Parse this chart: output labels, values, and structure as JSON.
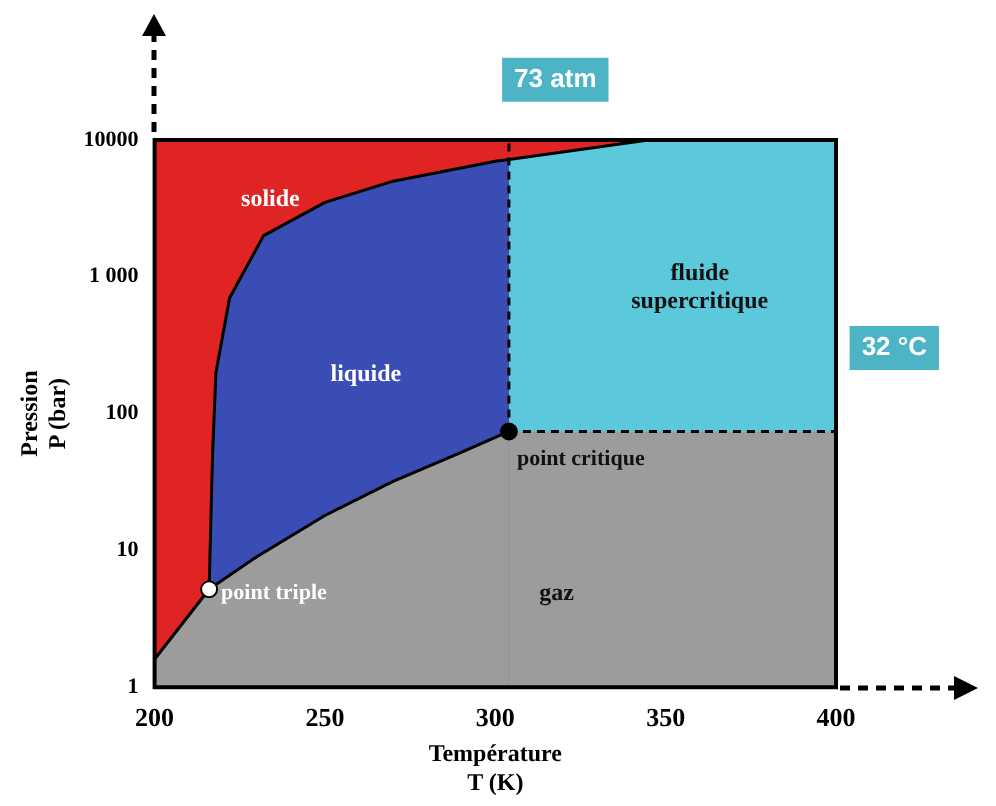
{
  "chart_data": {
    "type": "area",
    "xlabel": "Température\nT (K)",
    "ylabel": "Pression\nP (bar)",
    "xlim": [
      200,
      400
    ],
    "xticks": [
      200,
      250,
      300,
      350,
      400
    ],
    "ylim": [
      1,
      10000
    ],
    "yticks": [
      1,
      10,
      100,
      {
        "value": 1000,
        "label": "1 000"
      },
      10000
    ],
    "log": "y",
    "grid": false,
    "legend": false,
    "series": [
      {
        "type": "area",
        "color": "#e02424",
        "x": [
          200,
          345
        ],
        "values": [
          10000,
          10000
        ]
      },
      {
        "type": "area",
        "color": "#3a4db4",
        "line_style": "solid",
        "x": [
          216,
          217,
          218,
          222,
          232,
          250,
          270,
          300,
          304
        ],
        "values": [
          5.2,
          50,
          200,
          700,
          2000,
          3500,
          5000,
          7000,
          7200
        ]
      },
      {
        "type": "area",
        "color": "#5cc8dc",
        "line_style": "solid",
        "x": [
          304,
          345,
          400
        ],
        "values": [
          7200,
          10000,
          10000
        ]
      },
      {
        "type": "area",
        "color": "#9c9c9c",
        "line_style": "solid",
        "x": [
          200,
          216,
          230,
          250,
          270,
          290,
          304
        ],
        "values": [
          1.6,
          5.2,
          9,
          18,
          32,
          52,
          74
        ]
      },
      {
        "type": "area",
        "color": "#9c9c9c",
        "line_style": "dashed",
        "x": [
          304,
          400
        ],
        "values": [
          74,
          74
        ]
      },
      {
        "type": "line",
        "color": "#000000",
        "line_style": "dashed",
        "x": [
          304,
          304
        ],
        "values": [
          74,
          10000
        ]
      },
      {
        "type": "scatter",
        "marker": "circle",
        "color": "#ffffff",
        "x": [
          216
        ],
        "values": [
          5.2
        ]
      },
      {
        "type": "scatter",
        "marker": "circle",
        "color": "#000000",
        "x": [
          304
        ],
        "values": [
          74
        ]
      }
    ],
    "annotations": [
      "solide",
      "liquide",
      "fluide\nsupercritique",
      "gaz",
      "73 atm",
      "32 °C",
      {
        "text": "point critique",
        "x": 304,
        "y": 74
      },
      {
        "text": "point triple",
        "x": 216,
        "y": 5.2
      }
    ]
  }
}
